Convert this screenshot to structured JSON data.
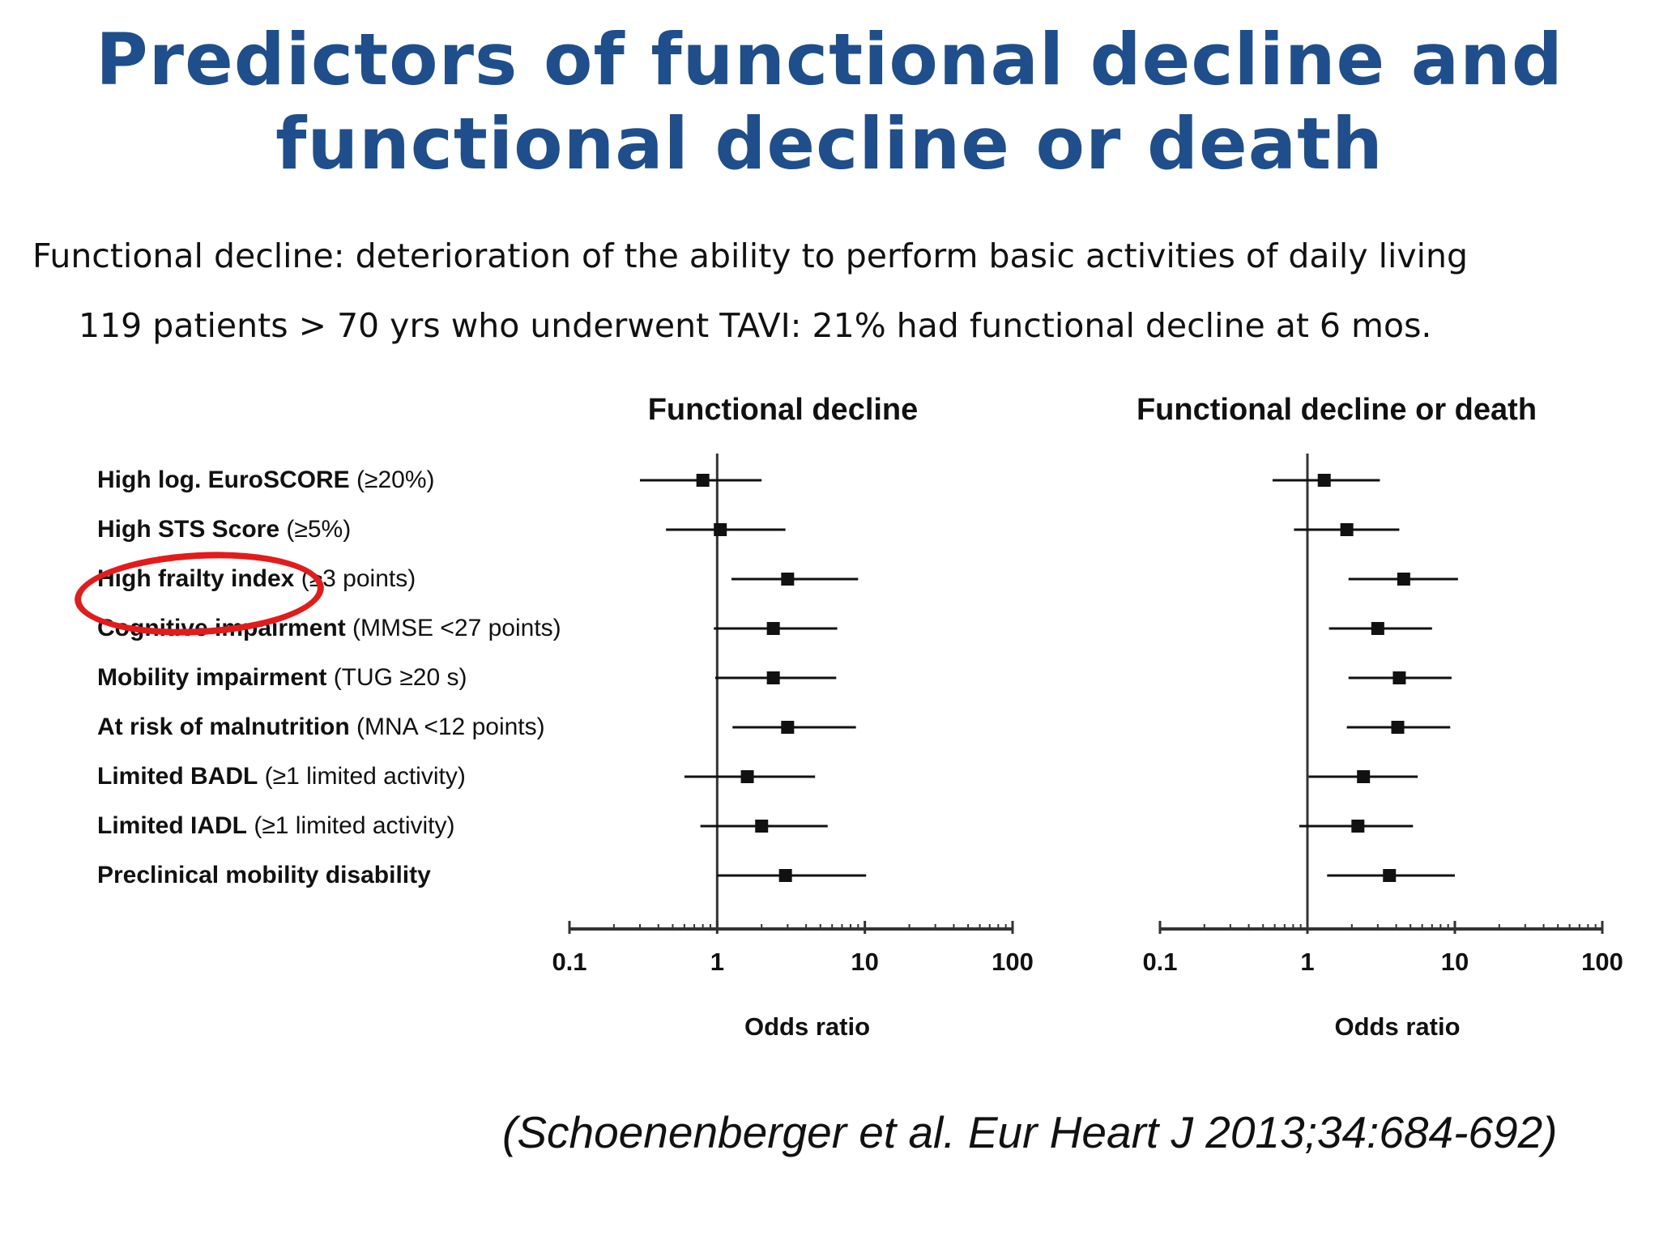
{
  "title_line1": "Predictors of functional decline and",
  "title_line2": "functional decline or death",
  "definition": "Functional decline: deterioration of the ability to perform basic activities of daily living",
  "population": "119 patients > 70 yrs who underwent TAVI: 21% had functional decline at 6 mos.",
  "predictors": [
    {
      "bold": "High log. EuroSCORE",
      "rest": " (≥20%)"
    },
    {
      "bold": "High STS Score",
      "rest": " (≥5%)"
    },
    {
      "bold": "High frailty index",
      "rest": " (≥3 points)"
    },
    {
      "bold": "Cognitive impairment",
      "rest": " (MMSE <27 points)"
    },
    {
      "bold": "Mobility impairment",
      "rest": " (TUG ≥20 s)"
    },
    {
      "bold": "At risk of malnutrition",
      "rest": " (MNA <12 points)"
    },
    {
      "bold": "Limited BADL",
      "rest": " (≥1 limited activity)"
    },
    {
      "bold": "Limited IADL",
      "rest": " (≥1 limited activity)"
    },
    {
      "bold": "Preclinical mobility disability",
      "rest": ""
    }
  ],
  "highlight_note": "High frailty index circled in red",
  "accent_color": "#1f4e8c",
  "highlight_color": "#e31b1b",
  "citation": "(Schoenenberger et al. Eur Heart J 2013;34:684-692)",
  "chart_data": [
    {
      "type": "forest",
      "title": "Functional decline",
      "xlabel": "Odds ratio",
      "xscale": "log",
      "xlim": [
        0.1,
        100
      ],
      "xticks": [
        "0.1",
        "1",
        "10",
        "100"
      ],
      "reference_line": 1,
      "or": [
        0.8,
        1.05,
        3.0,
        2.4,
        2.4,
        3.0,
        1.6,
        2.0,
        2.9
      ],
      "lower": [
        0.3,
        0.45,
        1.25,
        0.95,
        0.97,
        1.27,
        0.6,
        0.77,
        1.0
      ],
      "upper": [
        2.0,
        2.9,
        9.0,
        6.5,
        6.4,
        8.7,
        4.6,
        5.6,
        10.2
      ]
    },
    {
      "type": "forest",
      "title": "Functional decline or death",
      "xlabel": "Odds ratio",
      "xscale": "log",
      "xlim": [
        0.1,
        100
      ],
      "xticks": [
        "0.1",
        "1",
        "10",
        "100"
      ],
      "reference_line": 1,
      "or": [
        1.3,
        1.85,
        4.5,
        3.0,
        4.2,
        4.1,
        2.4,
        2.2,
        3.6
      ],
      "lower": [
        0.58,
        0.81,
        1.9,
        1.4,
        1.9,
        1.85,
        1.02,
        0.88,
        1.36
      ],
      "upper": [
        3.1,
        4.2,
        10.5,
        7.0,
        9.5,
        9.3,
        5.6,
        5.2,
        10.0
      ]
    }
  ]
}
